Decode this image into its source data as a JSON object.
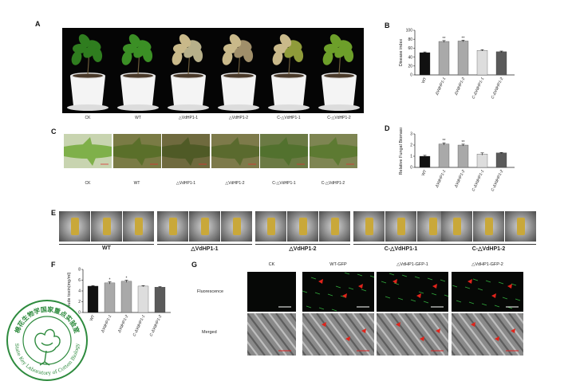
{
  "panels": {
    "A": {
      "label": "A",
      "captions": [
        "CK",
        "WT",
        "△VdHP1-1",
        "△VdHP1-2",
        "C-△VdHP1-1",
        "C-△VdHP1-2"
      ]
    },
    "B": {
      "label": "B"
    },
    "C": {
      "label": "C",
      "captions": [
        "CK",
        "WT",
        "△VdHP1-1",
        "△VdHP1-2",
        "C-△VdHP1-1",
        "C-△VdHP1-2"
      ]
    },
    "D": {
      "label": "D"
    },
    "E": {
      "label": "E",
      "groups": [
        "WT",
        "△VdHP1-1",
        "△VdHP1-2",
        "C-△VdHP1-1",
        "C-△VdHP1-2"
      ]
    },
    "F": {
      "label": "F"
    },
    "G": {
      "label": "G",
      "columns": [
        "CK",
        "WT-GFP",
        "△VdHP1-GFP-1",
        "△VdHP1-GFP-2"
      ],
      "rows": [
        "Fluorescence",
        "Merged"
      ]
    }
  },
  "logo": {
    "inner_text": "棉花生物学国家重点实验室",
    "outer_text": "State Key Laboratory of Cotton Biology"
  },
  "colors": {
    "bar_black": "#111111",
    "bar_gray": "#a9a9a9",
    "bar_light": "#dddddd",
    "bar_dark": "#5a5a5a",
    "logo_green": "#2e8b3e",
    "arrow_red": "#e0241b",
    "gfp_green": "#3dd44a"
  },
  "chart_data": [
    {
      "panel": "B",
      "type": "bar",
      "categories": [
        "WT",
        "ΔVdHP1-1",
        "ΔVdHP1-2",
        "C-ΔVdHP1-1",
        "C-ΔVdHP1-2"
      ],
      "values": [
        50,
        75,
        76,
        55,
        52
      ],
      "errors": [
        1.5,
        2,
        2,
        1.5,
        1.5
      ],
      "significance": [
        "",
        "**",
        "**",
        "",
        ""
      ],
      "ylabel": "Disease index",
      "ylim": [
        0,
        100
      ],
      "yticks": [
        "0",
        "20",
        "40",
        "60",
        "80",
        "100"
      ]
    },
    {
      "panel": "D",
      "type": "bar",
      "categories": [
        "WT",
        "ΔVdHP1-1",
        "ΔVdHP1-2",
        "C-ΔVdHP1-1",
        "C-ΔVdHP1-2"
      ],
      "values": [
        1.0,
        2.1,
        2.0,
        1.2,
        1.3
      ],
      "errors": [
        0.08,
        0.1,
        0.08,
        0.1,
        0.04
      ],
      "significance": [
        "",
        "**",
        "**",
        "",
        ""
      ],
      "ylabel": "Relative Fungal Biomass",
      "ylim": [
        0,
        3
      ],
      "yticks": [
        "0",
        "1",
        "2",
        "3"
      ]
    },
    {
      "panel": "F",
      "type": "bar",
      "categories": [
        "WT",
        "ΔVdHP1-1",
        "ΔVdHP1-2",
        "C-ΔVdHP1-1",
        "C-ΔVdHP1-2"
      ],
      "values": [
        4.9,
        5.5,
        5.8,
        4.9,
        4.7
      ],
      "errors": [
        0.1,
        0.2,
        0.2,
        0.1,
        0.1
      ],
      "significance": [
        "",
        "*",
        "*",
        "",
        ""
      ],
      "ylabel": "Crude toxin(mg/ml)",
      "ylim": [
        0,
        8
      ],
      "yticks": [
        "0",
        "2",
        "4",
        "6",
        "8"
      ]
    }
  ]
}
